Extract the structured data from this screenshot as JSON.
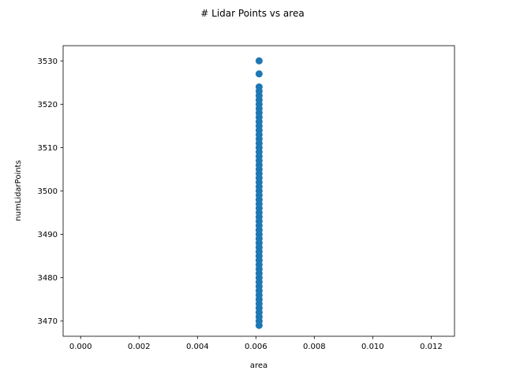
{
  "chart_data": {
    "type": "scatter",
    "title": "# Lidar Points vs area",
    "xlabel": "area",
    "ylabel": "numLidarPoints",
    "xlim": [
      -0.0006,
      0.0128
    ],
    "ylim": [
      3466.5,
      3533.5
    ],
    "xticks": [
      0.0,
      0.002,
      0.004,
      0.006,
      0.008,
      0.01,
      0.012
    ],
    "xtick_labels": [
      "0.000",
      "0.002",
      "0.004",
      "0.006",
      "0.008",
      "0.010",
      "0.012"
    ],
    "yticks": [
      3470,
      3480,
      3490,
      3500,
      3510,
      3520,
      3530
    ],
    "ytick_labels": [
      "3470",
      "3480",
      "3490",
      "3500",
      "3510",
      "3520",
      "3530"
    ],
    "grid": false,
    "marker_color": "#1f77b4",
    "series": [
      {
        "x": [
          0.00611,
          0.00611,
          0.00611,
          0.00611,
          0.00611,
          0.00611,
          0.00611,
          0.00611,
          0.00611,
          0.00611,
          0.00611,
          0.00611,
          0.00611,
          0.00611,
          0.00611,
          0.00611,
          0.00611,
          0.00611,
          0.00611,
          0.00611,
          0.00611,
          0.00611,
          0.00611,
          0.00611,
          0.00611,
          0.00611,
          0.00611,
          0.00611,
          0.00611,
          0.00611,
          0.00611,
          0.00611,
          0.00611,
          0.00611,
          0.00611,
          0.00611,
          0.00611,
          0.00611,
          0.00611,
          0.00611,
          0.00611,
          0.00611,
          0.00611,
          0.00611,
          0.00611,
          0.00611,
          0.00611,
          0.00611,
          0.00611,
          0.00611,
          0.00611,
          0.00611,
          0.00611,
          0.00611,
          0.00611,
          0.00611,
          0.00611,
          0.00611
        ],
        "y": [
          3469,
          3470,
          3471,
          3472,
          3473,
          3474,
          3475,
          3476,
          3477,
          3478,
          3479,
          3480,
          3481,
          3482,
          3483,
          3484,
          3485,
          3486,
          3487,
          3488,
          3489,
          3490,
          3491,
          3492,
          3493,
          3494,
          3495,
          3496,
          3497,
          3498,
          3499,
          3500,
          3501,
          3502,
          3503,
          3504,
          3505,
          3506,
          3507,
          3508,
          3509,
          3510,
          3511,
          3512,
          3513,
          3514,
          3515,
          3516,
          3517,
          3518,
          3519,
          3520,
          3521,
          3522,
          3523,
          3524,
          3527,
          3530
        ]
      }
    ]
  }
}
